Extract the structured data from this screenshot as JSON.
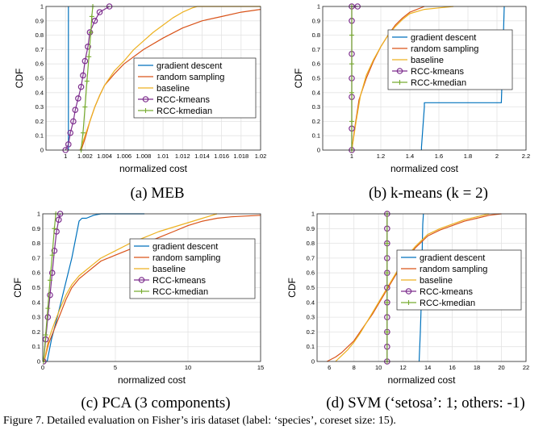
{
  "figure": {
    "caption": "Figure 7.  Detailed evaluation on Fisher’s iris dataset (label: ‘species’, coreset size: 15)."
  },
  "series_colors": {
    "gradient descent": "#0072BD",
    "random sampling": "#D95319",
    "baseline": "#EDB120",
    "RCC-kmeans": "#7E2F8E",
    "RCC-kmedian": "#77AC30"
  },
  "chart_data": [
    {
      "type": "line",
      "subcaption": "(a) MEB",
      "xlabel": "normalized cost",
      "ylabel": "CDF",
      "xlim": [
        0.998,
        1.02
      ],
      "ylim": [
        0,
        1
      ],
      "xticks": [
        "1",
        "1.002",
        "1.004",
        "1.006",
        "1.008",
        "1.01",
        "1.012",
        "1.014",
        "1.016",
        "1.018",
        "1.02"
      ],
      "yticks": [
        "0",
        "0.1",
        "0.2",
        "0.3",
        "0.4",
        "0.5",
        "0.6",
        "0.7",
        "0.8",
        "0.9",
        "1"
      ],
      "grid": true,
      "legend_position": "center-right",
      "series": [
        {
          "name": "gradient descent",
          "x": [
            1.0003,
            1.0003,
            1.0003
          ],
          "y": [
            0,
            1,
            1
          ]
        },
        {
          "name": "random sampling",
          "x": [
            1.0016,
            1.002,
            1.0025,
            1.003,
            1.0035,
            1.004,
            1.005,
            1.006,
            1.008,
            1.01,
            1.012,
            1.014,
            1.016,
            1.018,
            1.02
          ],
          "y": [
            0,
            0.08,
            0.2,
            0.3,
            0.38,
            0.45,
            0.53,
            0.6,
            0.7,
            0.78,
            0.85,
            0.9,
            0.93,
            0.96,
            0.98
          ]
        },
        {
          "name": "baseline",
          "x": [
            1.0015,
            1.002,
            1.0025,
            1.003,
            1.0035,
            1.004,
            1.005,
            1.006,
            1.007,
            1.008,
            1.009,
            1.01,
            1.011,
            1.012,
            1.013,
            1.0135,
            1.02
          ],
          "y": [
            0,
            0.1,
            0.2,
            0.3,
            0.38,
            0.45,
            0.55,
            0.62,
            0.7,
            0.76,
            0.82,
            0.87,
            0.92,
            0.96,
            0.99,
            1,
            1
          ]
        },
        {
          "name": "RCC-kmeans",
          "x": [
            1.0,
            1.0003,
            1.0005,
            1.0008,
            1.001,
            1.0013,
            1.0016,
            1.0018,
            1.002,
            1.0023,
            1.0025,
            1.003,
            1.0035,
            1.0045
          ],
          "y": [
            0,
            0.04,
            0.12,
            0.2,
            0.28,
            0.36,
            0.44,
            0.52,
            0.62,
            0.72,
            0.82,
            0.9,
            0.96,
            1
          ]
        },
        {
          "name": "RCC-kmedian",
          "x": [
            1.0016,
            1.0018,
            1.002,
            1.0022,
            1.0024,
            1.0026,
            1.0027,
            1.0028
          ],
          "y": [
            0,
            0.12,
            0.3,
            0.48,
            0.65,
            0.82,
            0.93,
            1
          ]
        }
      ]
    },
    {
      "type": "line",
      "subcaption": "(b) k-means (k = 2)",
      "xlabel": "normalized cost",
      "ylabel": "CDF",
      "xlim": [
        0.8,
        2.2
      ],
      "ylim": [
        0,
        1
      ],
      "xticks": [
        "1",
        "1.2",
        "1.4",
        "1.6",
        "1.8",
        "2",
        "2.2"
      ],
      "yticks": [
        "0",
        "0.1",
        "0.2",
        "0.3",
        "0.4",
        "0.5",
        "0.6",
        "0.7",
        "0.8",
        "0.9",
        "1"
      ],
      "grid": true,
      "legend_position": "top-right",
      "series": [
        {
          "name": "gradient descent",
          "x": [
            1.48,
            1.48,
            1.5,
            1.5,
            2.03,
            2.04,
            2.05
          ],
          "y": [
            0,
            0.02,
            0.3,
            0.33,
            0.33,
            0.65,
            1
          ]
        },
        {
          "name": "random sampling",
          "x": [
            1.0,
            1.02,
            1.05,
            1.1,
            1.15,
            1.2,
            1.25,
            1.3,
            1.35,
            1.4,
            1.45,
            1.5
          ],
          "y": [
            0,
            0.15,
            0.35,
            0.5,
            0.62,
            0.72,
            0.8,
            0.87,
            0.92,
            0.96,
            0.98,
            1
          ]
        },
        {
          "name": "baseline",
          "x": [
            1.0,
            1.03,
            1.06,
            1.1,
            1.15,
            1.2,
            1.25,
            1.3,
            1.35,
            1.4,
            1.5,
            1.6,
            1.7
          ],
          "y": [
            0,
            0.2,
            0.38,
            0.52,
            0.63,
            0.72,
            0.8,
            0.86,
            0.91,
            0.95,
            0.98,
            0.99,
            1
          ]
        },
        {
          "name": "RCC-kmeans",
          "x": [
            1.0,
            1.0,
            1.0,
            1.0,
            1.0,
            1.0,
            1.0,
            1.04
          ],
          "y": [
            0,
            0.15,
            0.37,
            0.5,
            0.67,
            0.9,
            1,
            1
          ]
        },
        {
          "name": "RCC-kmedian",
          "x": [
            1.0,
            1.0,
            1.0,
            1.0,
            1.0,
            1.0
          ],
          "y": [
            0,
            0.2,
            0.4,
            0.6,
            0.8,
            1
          ]
        }
      ]
    },
    {
      "type": "line",
      "subcaption": "(c) PCA (3 components)",
      "xlabel": "normalized cost",
      "ylabel": "CDF",
      "xlim": [
        0,
        15
      ],
      "ylim": [
        0,
        1
      ],
      "xticks": [
        "0",
        "5",
        "10",
        "15"
      ],
      "yticks": [
        "0",
        "0.1",
        "0.2",
        "0.3",
        "0.4",
        "0.5",
        "0.6",
        "0.7",
        "0.8",
        "0.9",
        "1"
      ],
      "grid": true,
      "legend_position": "center-right",
      "series": [
        {
          "name": "gradient descent",
          "x": [
            0.3,
            0.6,
            1.0,
            1.5,
            2.0,
            2.3,
            2.5,
            2.7,
            3.0,
            3.5,
            4.0,
            5.0,
            7.0
          ],
          "y": [
            0,
            0.15,
            0.3,
            0.5,
            0.7,
            0.85,
            0.95,
            0.97,
            0.97,
            0.99,
            1,
            1,
            1
          ]
        },
        {
          "name": "random sampling",
          "x": [
            0.1,
            0.4,
            0.8,
            1.2,
            1.6,
            2.0,
            2.5,
            3.0,
            3.5,
            4.0,
            5.0,
            6.0,
            7.0,
            8.0,
            9.0,
            10.0,
            11.0,
            12.0,
            13.0,
            15.0
          ],
          "y": [
            0,
            0.12,
            0.22,
            0.32,
            0.42,
            0.5,
            0.56,
            0.6,
            0.64,
            0.68,
            0.72,
            0.76,
            0.8,
            0.84,
            0.88,
            0.92,
            0.95,
            0.97,
            0.98,
            0.99
          ]
        },
        {
          "name": "baseline",
          "x": [
            0.1,
            0.4,
            0.8,
            1.2,
            1.6,
            2.0,
            2.5,
            3.0,
            3.5,
            4.0,
            5.0,
            6.0,
            7.0,
            8.0,
            9.0,
            10.0,
            11.0,
            12.0
          ],
          "y": [
            0,
            0.15,
            0.26,
            0.36,
            0.45,
            0.52,
            0.58,
            0.62,
            0.66,
            0.7,
            0.75,
            0.8,
            0.84,
            0.88,
            0.91,
            0.94,
            0.97,
            1
          ]
        },
        {
          "name": "RCC-kmeans",
          "x": [
            0.05,
            0.2,
            0.35,
            0.5,
            0.65,
            0.8,
            0.95,
            1.1,
            1.2
          ],
          "y": [
            0,
            0.15,
            0.3,
            0.45,
            0.6,
            0.75,
            0.88,
            0.96,
            1
          ]
        },
        {
          "name": "RCC-kmedian",
          "x": [
            0.05,
            0.2,
            0.35,
            0.5,
            0.65,
            0.8,
            0.9
          ],
          "y": [
            0,
            0.18,
            0.36,
            0.55,
            0.72,
            0.9,
            1
          ]
        }
      ]
    },
    {
      "type": "line",
      "subcaption": "(d) SVM (‘setosa’: 1; others: -1)",
      "xlabel": "normalized cost",
      "ylabel": "CDF",
      "xlim": [
        5,
        22
      ],
      "ylim": [
        0,
        1
      ],
      "xticks": [
        "6",
        "8",
        "10",
        "12",
        "14",
        "16",
        "18",
        "20",
        "22"
      ],
      "yticks": [
        "0",
        "0.1",
        "0.2",
        "0.3",
        "0.4",
        "0.5",
        "0.6",
        "0.7",
        "0.8",
        "0.9",
        "1"
      ],
      "grid": true,
      "legend_position": "center-right",
      "series": [
        {
          "name": "gradient descent",
          "x": [
            13.3,
            13.4,
            13.5,
            13.55,
            13.6,
            13.65
          ],
          "y": [
            0,
            0.2,
            0.45,
            0.75,
            0.93,
            1
          ]
        },
        {
          "name": "random sampling",
          "x": [
            5.8,
            6.5,
            7.0,
            7.5,
            8.0,
            8.5,
            9.0,
            9.5,
            10.0,
            10.5,
            11.0,
            11.5,
            12.0,
            12.5,
            13.0,
            13.5,
            14.0,
            15.0,
            16.0,
            17.0,
            18.0,
            19.0,
            20.0
          ],
          "y": [
            0,
            0.03,
            0.06,
            0.1,
            0.14,
            0.2,
            0.26,
            0.32,
            0.39,
            0.46,
            0.53,
            0.6,
            0.66,
            0.72,
            0.77,
            0.81,
            0.85,
            0.89,
            0.92,
            0.95,
            0.97,
            0.99,
            1
          ]
        },
        {
          "name": "baseline",
          "x": [
            6.5,
            7.0,
            7.5,
            8.0,
            8.5,
            9.0,
            9.5,
            10.0,
            10.5,
            11.0,
            11.5,
            12.0,
            12.5,
            13.0,
            13.5,
            14.0,
            15.0,
            16.0,
            17.0,
            18.0,
            19.0
          ],
          "y": [
            0,
            0.04,
            0.08,
            0.13,
            0.19,
            0.26,
            0.33,
            0.4,
            0.47,
            0.54,
            0.61,
            0.67,
            0.73,
            0.78,
            0.82,
            0.86,
            0.9,
            0.93,
            0.96,
            0.98,
            1
          ]
        },
        {
          "name": "RCC-kmeans",
          "x": [
            10.7,
            10.7,
            10.7,
            10.7,
            10.7,
            10.7,
            10.7,
            10.7,
            10.7,
            10.7,
            10.7
          ],
          "y": [
            0,
            0.1,
            0.2,
            0.3,
            0.4,
            0.5,
            0.6,
            0.7,
            0.8,
            0.9,
            1
          ]
        },
        {
          "name": "RCC-kmedian",
          "x": [
            10.7,
            10.7,
            10.7,
            10.7,
            10.7,
            10.7
          ],
          "y": [
            0,
            0.2,
            0.4,
            0.6,
            0.8,
            1
          ]
        }
      ]
    }
  ]
}
